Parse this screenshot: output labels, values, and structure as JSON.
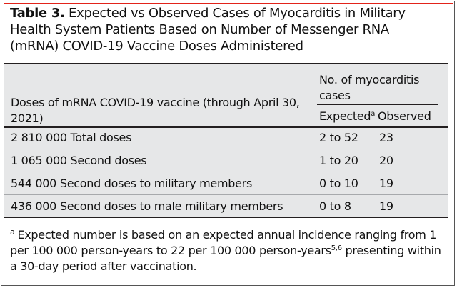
{
  "title": {
    "label": "Table 3.",
    "text": "Expected vs Observed Cases of Myocarditis in Military Health System Patients Based on Number of Messenger RNA (mRNA) COVID-19 Vaccine Doses Administered"
  },
  "table": {
    "header": {
      "doses_col": "Doses of mRNA COVID-19 vaccine (through April 30, 2021)",
      "group_label": "No. of myocarditis cases",
      "expected": "Expected",
      "expected_mark": "a",
      "observed": "Observed"
    },
    "rows": [
      {
        "doses": "2 810 000 Total doses",
        "expected": "2 to 52",
        "observed": "23"
      },
      {
        "doses": "1 065 000 Second doses",
        "expected": "1 to 20",
        "observed": "20"
      },
      {
        "doses": "544 000 Second doses to military members",
        "expected": "0 to 10",
        "observed": "19"
      },
      {
        "doses": "436 000 Second doses to male military members",
        "expected": "0 to 8",
        "observed": "19"
      }
    ]
  },
  "footnote": {
    "mark": "a",
    "text_part1": "Expected number is based on an expected annual incidence ranging from 1 per 100 000 person-years to 22 per 100 000 person-years",
    "refs": "5,6",
    "text_part2": " presenting within a 30-day period after vaccination."
  },
  "colors": {
    "accent_rule": "#e2231a",
    "table_background": "#e6e7e8",
    "text": "#111111"
  }
}
